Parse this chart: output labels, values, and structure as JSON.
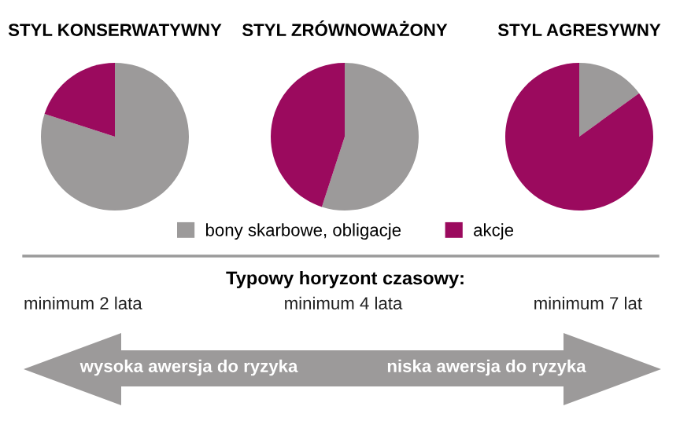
{
  "chart_data": [
    {
      "type": "pie",
      "title": "STYL KONSERWATYWNY",
      "categories": [
        "bony skarbowe, obligacje",
        "akcje"
      ],
      "values": [
        80,
        20
      ],
      "colors": [
        "#9c9a9a",
        "#9b0a5e"
      ],
      "legend": "bottom"
    },
    {
      "type": "pie",
      "title": "STYL ZRÓWNOWAŻONY",
      "categories": [
        null,
        null
      ],
      "values": [
        55,
        45
      ],
      "colors": [
        "#9c9a9a",
        "#9b0a5e"
      ],
      "legend": false
    },
    {
      "type": "pie",
      "title": "STYL AGRESYWNY",
      "categories": [
        null,
        null
      ],
      "values": [
        15,
        85
      ],
      "colors": [
        "#9c9a9a",
        "#9b0a5e"
      ],
      "legend": false
    },
    {
      "type": "other",
      "title": "Typowy horyzont czasowy:",
      "annotations": [
        "minimum 2 lata",
        "minimum 4 lata",
        "minimum 7 lat",
        "wysoka awersja do ryzyka",
        "niska awersja do ryzyka"
      ]
    }
  ]
}
